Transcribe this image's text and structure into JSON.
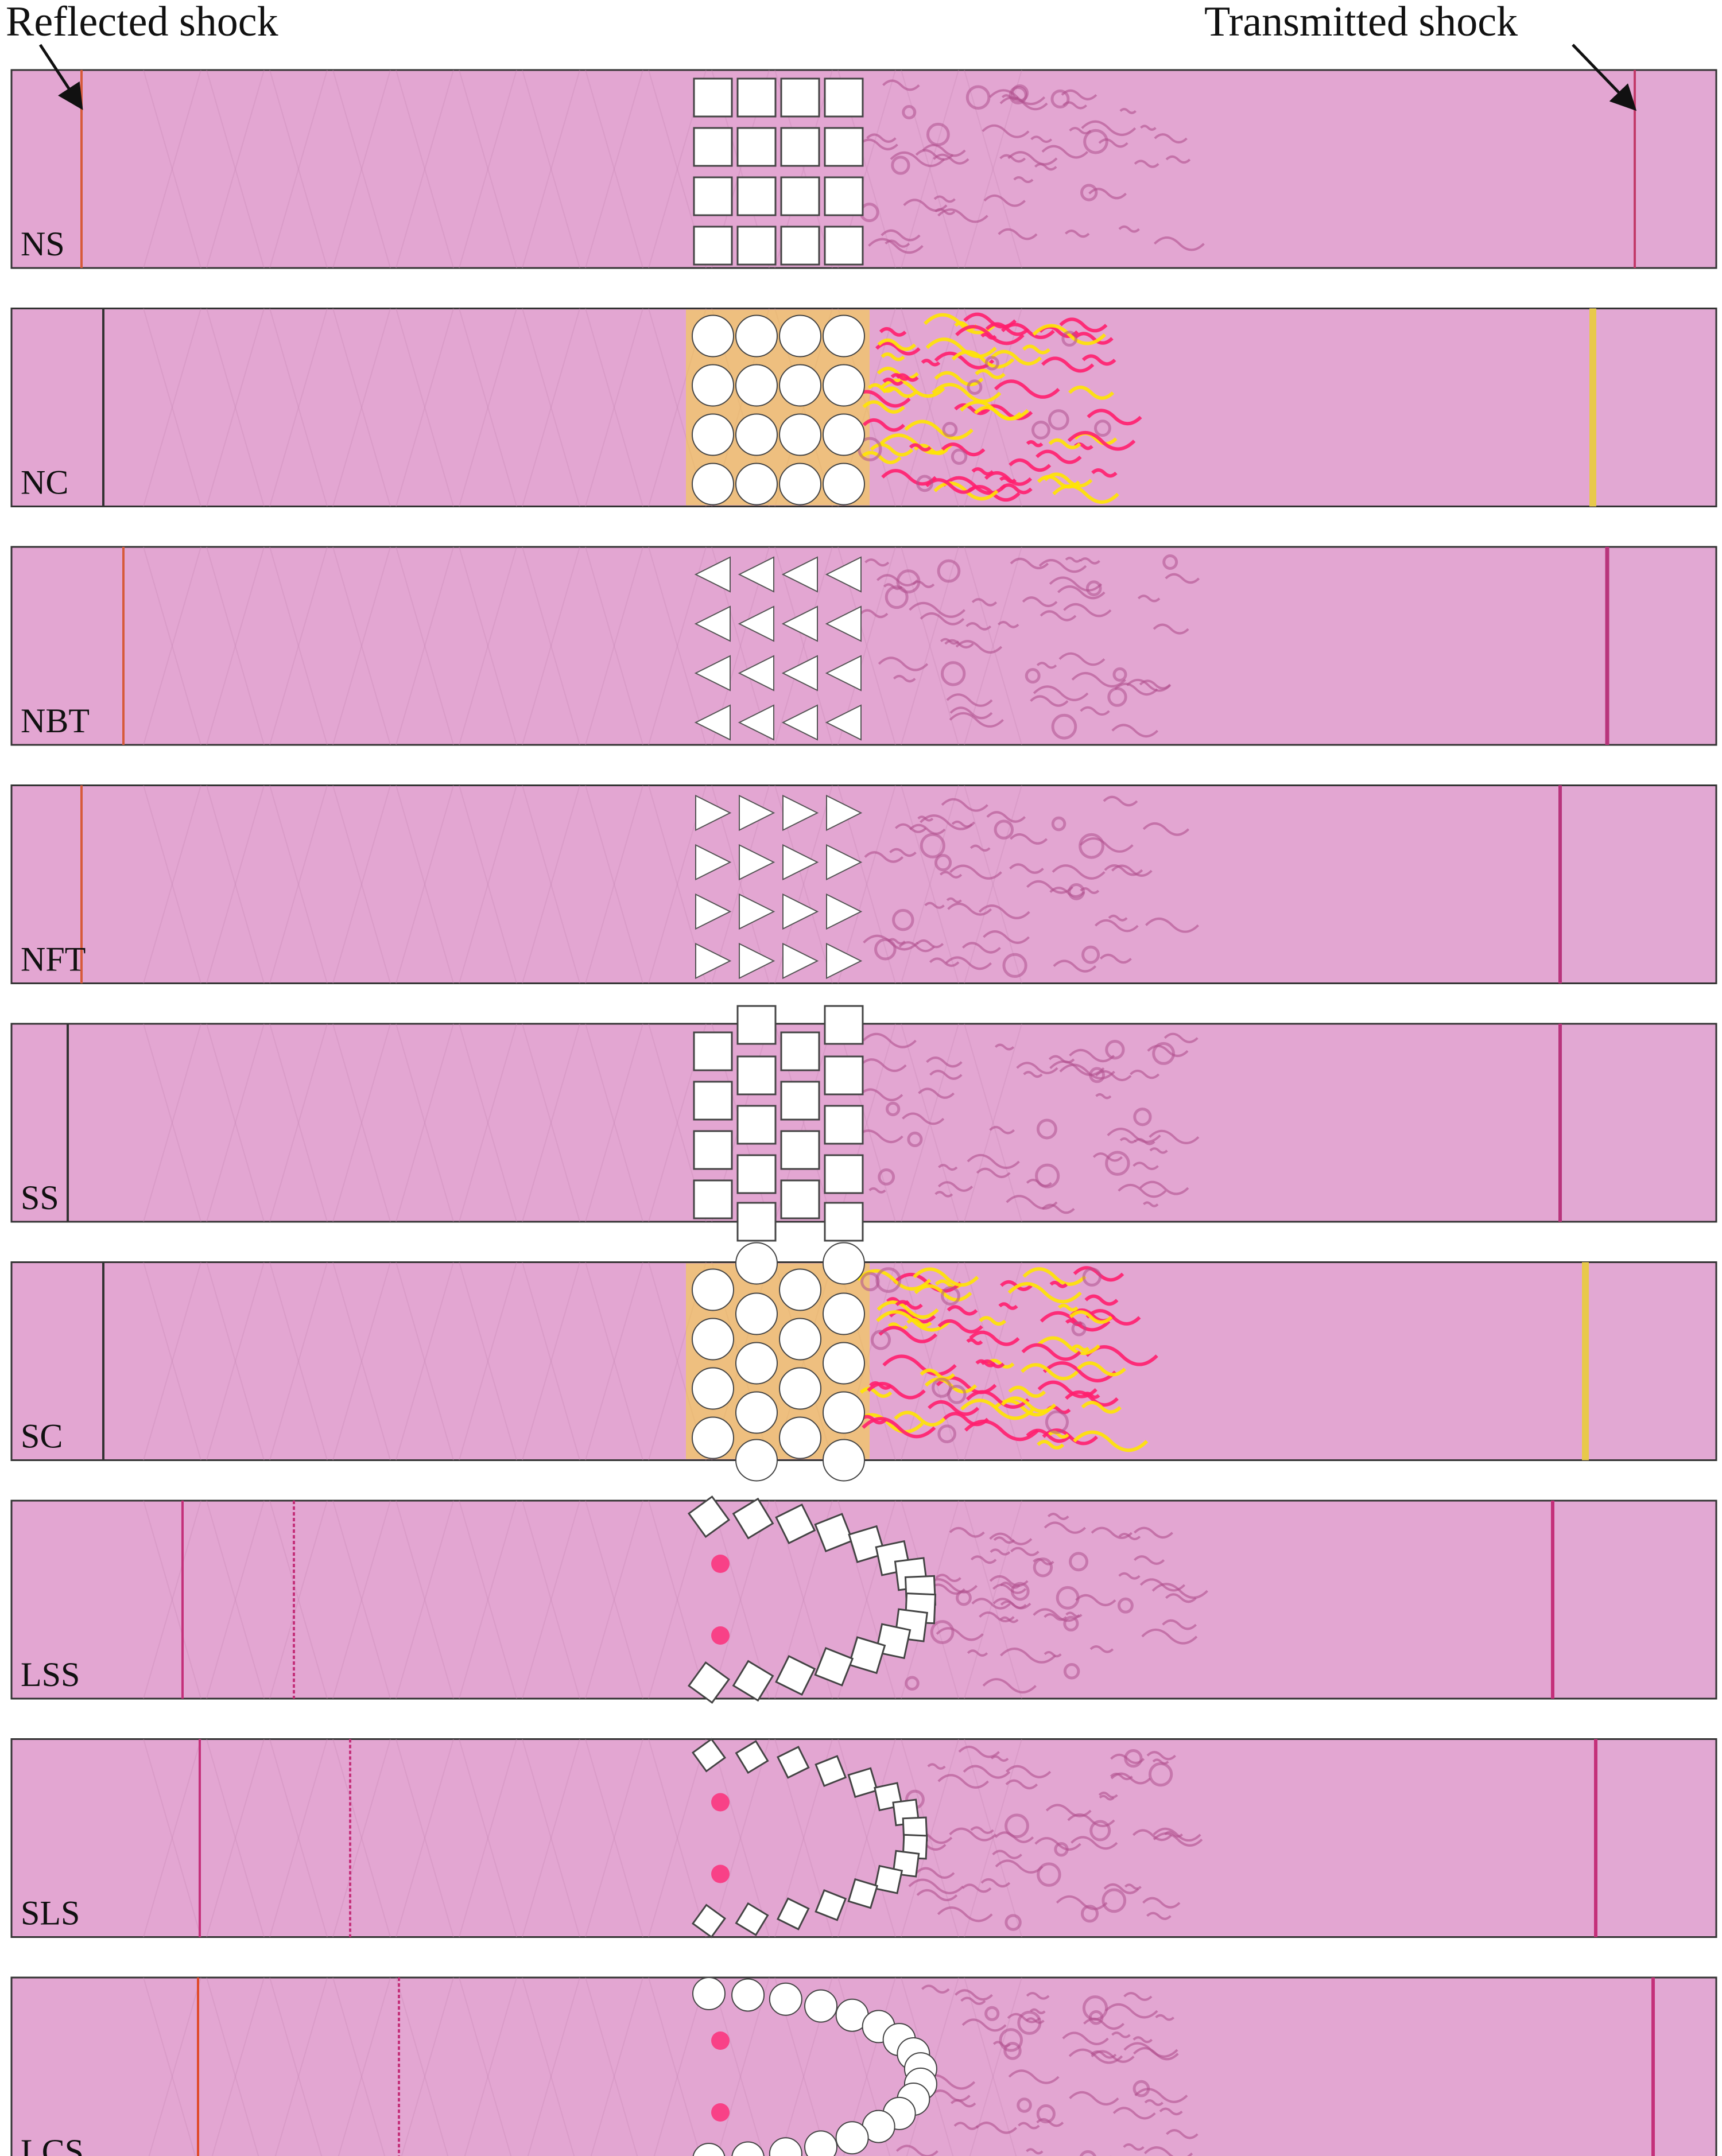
{
  "annotations": {
    "reflected_shock": "Reflected shock",
    "transmitted_shock": "Transmitted shock"
  },
  "colors": {
    "background_field": "#e3a6d2",
    "frame": "#333333",
    "obstacle": "#ffffff",
    "vortex": "#b0508e",
    "hot": "#ff1f6e",
    "warm": "#ffe600",
    "shock": "#c4307a"
  },
  "panels": [
    {
      "label": "NS",
      "obstacle_shape": "square",
      "arrangement": "normal-array"
    },
    {
      "label": "NC",
      "obstacle_shape": "circle",
      "arrangement": "normal-array"
    },
    {
      "label": "NBT",
      "obstacle_shape": "backward-triangle",
      "arrangement": "normal-array"
    },
    {
      "label": "NFT",
      "obstacle_shape": "forward-triangle",
      "arrangement": "normal-array"
    },
    {
      "label": "SS",
      "obstacle_shape": "square",
      "arrangement": "staggered-array"
    },
    {
      "label": "SC",
      "obstacle_shape": "circle",
      "arrangement": "staggered-array"
    },
    {
      "label": "LSS",
      "obstacle_shape": "square",
      "arrangement": "u-shape-large"
    },
    {
      "label": "SLS",
      "obstacle_shape": "square",
      "arrangement": "u-shape-small"
    },
    {
      "label": "LCS",
      "obstacle_shape": "circle",
      "arrangement": "u-shape-large"
    }
  ]
}
